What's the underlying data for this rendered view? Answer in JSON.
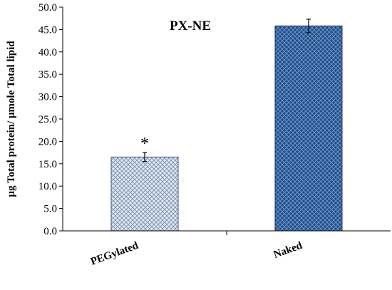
{
  "chart_data": {
    "type": "bar",
    "title": "PX-NE",
    "xlabel": "",
    "ylabel": "µg Total protein/ µmole Total lipid",
    "categories": [
      "PEGylated",
      "Naked"
    ],
    "values": [
      16.5,
      45.8
    ],
    "error": [
      1.0,
      1.5
    ],
    "annotations": [
      "*",
      ""
    ],
    "ylim": [
      0,
      50
    ],
    "yticks": [
      "0.0",
      "5.0",
      "10.0",
      "15.0",
      "20.0",
      "25.0",
      "30.0",
      "35.0",
      "40.0",
      "45.0",
      "50.0"
    ],
    "grid": false,
    "legend": "none",
    "colors": {
      "pegylated_fill": "#dfe7f2",
      "pegylated_pattern": "#6f86a8",
      "naked_fill": "#1f4e8c",
      "naked_pattern": "#7fa2cf",
      "axis": "#000000"
    }
  }
}
